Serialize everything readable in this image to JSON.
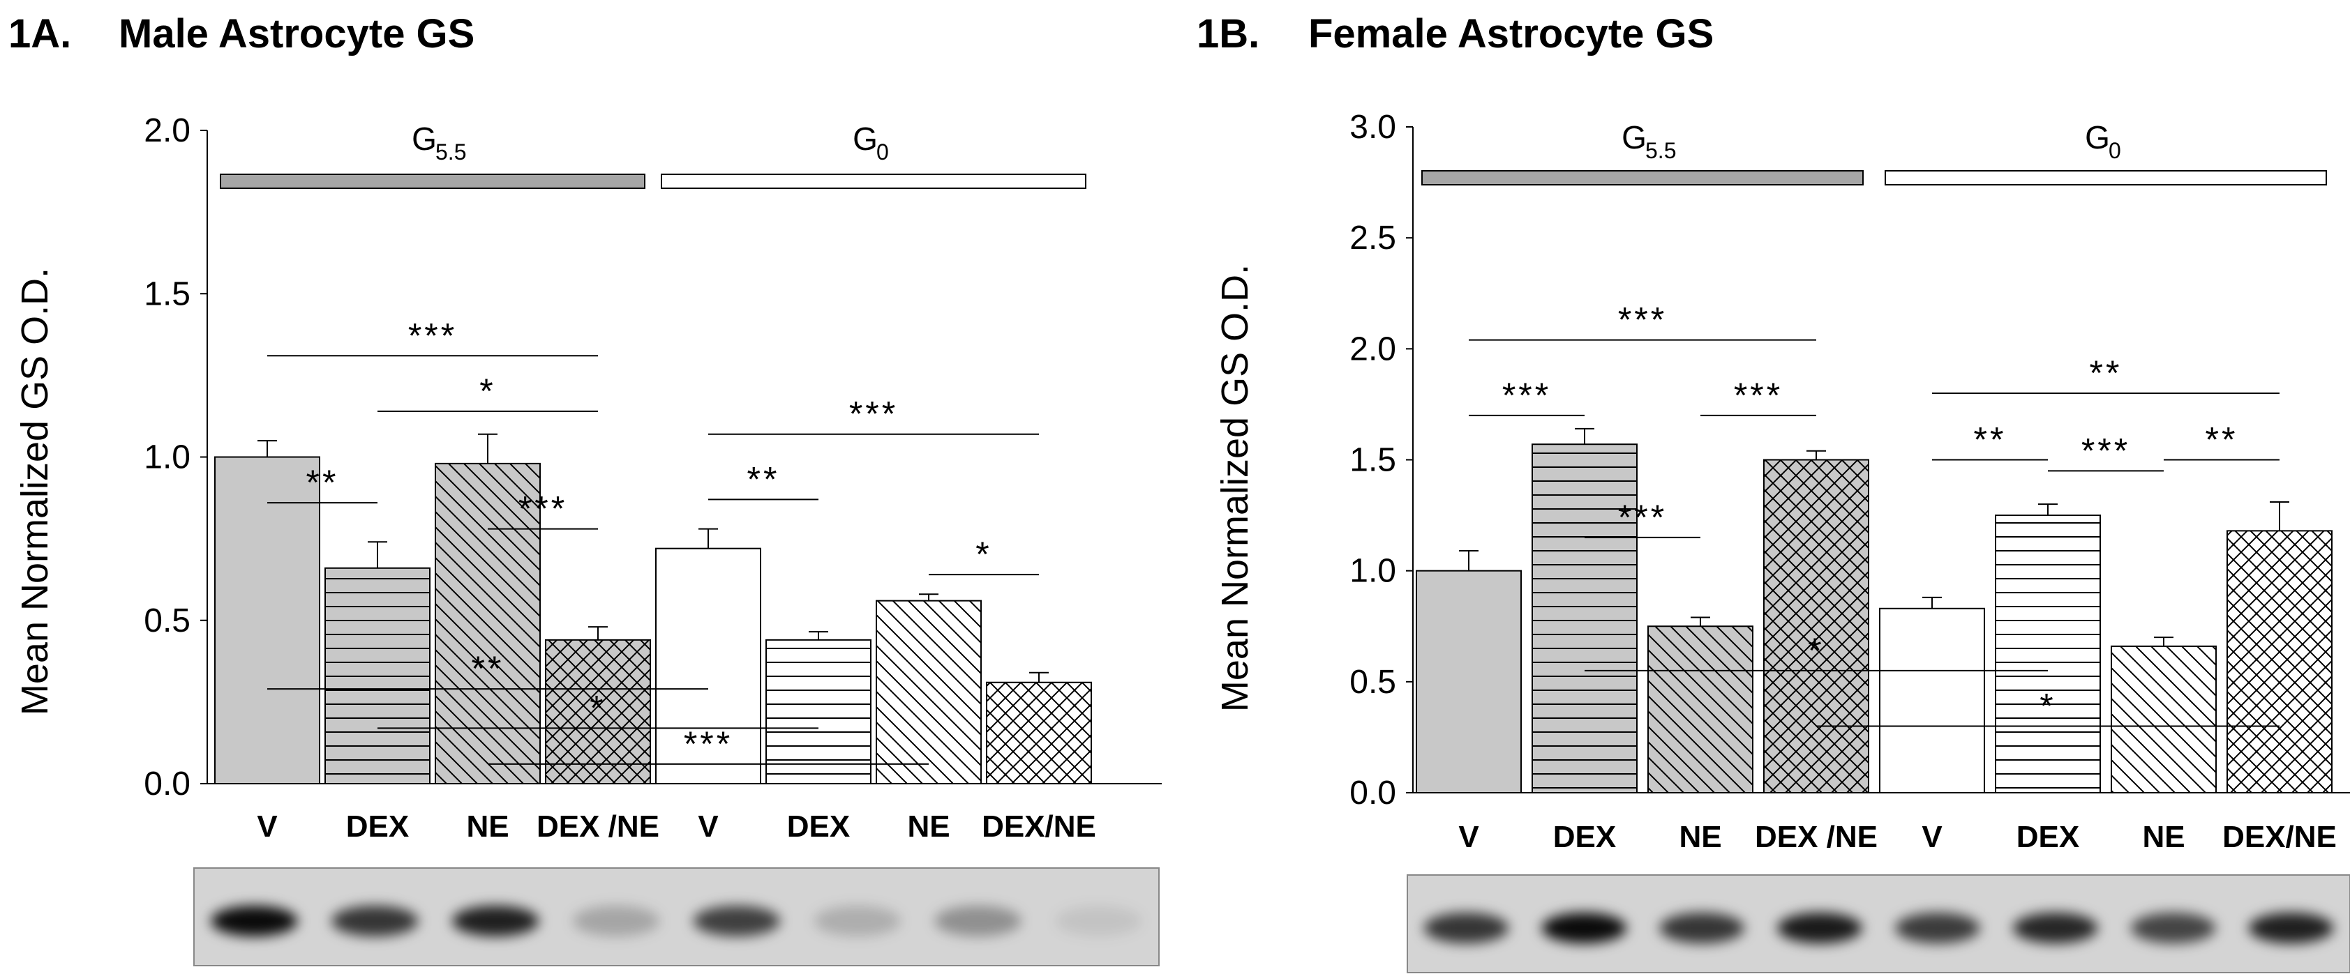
{
  "colors": {
    "axis": "#000000",
    "bar_filled": "#c8c8c8",
    "bar_empty": "#ffffff",
    "blot_bg": "#d4d4d4"
  },
  "chart_data": [
    {
      "type": "bar",
      "panel_label": "1A.",
      "title": "Male Astrocyte GS",
      "ylabel": "Mean Normalized GS O.D.",
      "ylim": [
        0,
        2.0
      ],
      "yticks": [
        "0.0",
        "0.5",
        "1.0",
        "1.5",
        "2.0"
      ],
      "ytick_values": [
        0,
        0.5,
        1.0,
        1.5,
        2.0
      ],
      "categories": [
        "V",
        "DEX",
        "NE",
        "DEX /NE",
        "V",
        "DEX",
        "NE",
        "DEX/NE"
      ],
      "values": [
        1.0,
        0.66,
        0.98,
        0.44,
        0.72,
        0.44,
        0.56,
        0.31
      ],
      "errors": [
        0.05,
        0.08,
        0.09,
        0.04,
        0.06,
        0.025,
        0.02,
        0.03
      ],
      "patterns": [
        "solid-gray",
        "horizontal-gray",
        "diagonal-gray",
        "crosshatch-gray",
        "solid-white",
        "horizontal-white",
        "diagonal-white",
        "crosshatch-white"
      ],
      "groups": [
        {
          "main": "G",
          "sub": "5.5",
          "fill": "#a6a6a6",
          "from": 0,
          "to": 3
        },
        {
          "main": "G",
          "sub": "0",
          "fill": "#ffffff",
          "from": 4,
          "to": 7
        }
      ],
      "significance": [
        {
          "from": 0,
          "to": 3,
          "label": "***",
          "y": 1.31
        },
        {
          "from": 1,
          "to": 3,
          "label": "*",
          "y": 1.14
        },
        {
          "from": 0,
          "to": 1,
          "label": "**",
          "y": 0.86
        },
        {
          "from": 2,
          "to": 3,
          "label": "***",
          "y": 0.78
        },
        {
          "from": 4,
          "to": 7,
          "label": "***",
          "y": 1.07
        },
        {
          "from": 4,
          "to": 5,
          "label": "**",
          "y": 0.87
        },
        {
          "from": 6,
          "to": 7,
          "label": "*",
          "y": 0.64
        },
        {
          "from": 0,
          "to": 4,
          "label": "**",
          "y": 0.29
        },
        {
          "from": 1,
          "to": 5,
          "label": "*",
          "y": 0.17
        },
        {
          "from": 2,
          "to": 6,
          "label": "***",
          "y": 0.06
        }
      ],
      "blot_intensity": [
        0.95,
        0.75,
        0.85,
        0.22,
        0.7,
        0.18,
        0.32,
        0.08
      ]
    },
    {
      "type": "bar",
      "panel_label": "1B.",
      "title": "Female Astrocyte GS",
      "ylabel": "Mean Normalized GS O.D.",
      "ylim": [
        0,
        3.0
      ],
      "yticks": [
        "0.0",
        "0.5",
        "1.0",
        "1.5",
        "2.0",
        "2.5",
        "3.0"
      ],
      "ytick_values": [
        0,
        0.5,
        1.0,
        1.5,
        2.0,
        2.5,
        3.0
      ],
      "categories": [
        "V",
        "DEX",
        "NE",
        "DEX /NE",
        "V",
        "DEX",
        "NE",
        "DEX/NE"
      ],
      "values": [
        1.0,
        1.57,
        0.75,
        1.5,
        0.83,
        1.25,
        0.66,
        1.18
      ],
      "errors": [
        0.09,
        0.07,
        0.04,
        0.04,
        0.05,
        0.05,
        0.04,
        0.13
      ],
      "patterns": [
        "solid-gray",
        "horizontal-gray",
        "diagonal-gray",
        "crosshatch-gray",
        "solid-white",
        "horizontal-white",
        "diagonal-white",
        "crosshatch-white"
      ],
      "groups": [
        {
          "main": "G",
          "sub": "5.5",
          "fill": "#a6a6a6",
          "from": 0,
          "to": 3
        },
        {
          "main": "G",
          "sub": "0",
          "fill": "#ffffff",
          "from": 4,
          "to": 7
        }
      ],
      "significance": [
        {
          "from": 0,
          "to": 3,
          "label": "***",
          "y": 2.04
        },
        {
          "from": 0,
          "to": 1,
          "label": "***",
          "y": 1.7
        },
        {
          "from": 2,
          "to": 3,
          "label": "***",
          "y": 1.7
        },
        {
          "from": 1,
          "to": 2,
          "label": "***",
          "y": 1.15
        },
        {
          "from": 4,
          "to": 7,
          "label": "**",
          "y": 1.8
        },
        {
          "from": 4,
          "to": 5,
          "label": "**",
          "y": 1.5
        },
        {
          "from": 5,
          "to": 6,
          "label": "***",
          "y": 1.45
        },
        {
          "from": 6,
          "to": 7,
          "label": "**",
          "y": 1.5
        },
        {
          "from": 1,
          "to": 5,
          "label": "*",
          "y": 0.55
        },
        {
          "from": 3,
          "to": 7,
          "label": "*",
          "y": 0.3
        }
      ],
      "blot_intensity": [
        0.75,
        0.95,
        0.75,
        0.88,
        0.72,
        0.82,
        0.68,
        0.85
      ]
    }
  ]
}
